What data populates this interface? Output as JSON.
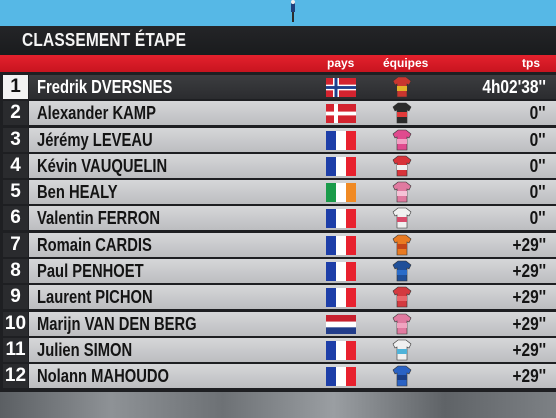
{
  "title": "CLASSEMENT ÉTAPE",
  "headers": {
    "pays": "pays",
    "equipes": "équipes",
    "tps": "tps"
  },
  "colors": {
    "accent_red": "#e4212d",
    "panel": "#1e1f22",
    "row": "#cfd0d2",
    "sky": "#56b8e6"
  },
  "rows": [
    {
      "rank": "1",
      "name": "Fredrik DVERSNES",
      "country": "norway",
      "time": "4h02'38''",
      "team_colors": [
        "#c9362f",
        "#e3b22a"
      ]
    },
    {
      "rank": "2",
      "name": "Alexander KAMP",
      "country": "denmark",
      "time": "0''",
      "team_colors": [
        "#2b2b2b",
        "#e23a3a"
      ]
    },
    {
      "rank": "3",
      "name": "Jérémy LEVEAU",
      "country": "france",
      "time": "0''",
      "team_colors": [
        "#e04a8e",
        "#f2a0c4"
      ]
    },
    {
      "rank": "4",
      "name": "Kévin VAUQUELIN",
      "country": "france",
      "time": "0''",
      "team_colors": [
        "#d8333a",
        "#f0f0f0"
      ]
    },
    {
      "rank": "5",
      "name": "Ben HEALY",
      "country": "ireland",
      "time": "0''",
      "team_colors": [
        "#e07aa0",
        "#f5c2d6"
      ]
    },
    {
      "rank": "6",
      "name": "Valentin FERRON",
      "country": "france",
      "time": "0''",
      "team_colors": [
        "#f0f0f0",
        "#d84a6a"
      ]
    },
    {
      "rank": "7",
      "name": "Romain CARDIS",
      "country": "france",
      "time": "+29''",
      "team_colors": [
        "#e97b22",
        "#c2451a"
      ]
    },
    {
      "rank": "8",
      "name": "Paul PENHOET",
      "country": "france",
      "time": "+29''",
      "team_colors": [
        "#1f4f99",
        "#2a6cc9"
      ]
    },
    {
      "rank": "9",
      "name": "Laurent PICHON",
      "country": "france",
      "time": "+29''",
      "team_colors": [
        "#d43a3f",
        "#e9676b"
      ]
    },
    {
      "rank": "10",
      "name": "Marijn VAN DEN BERG",
      "country": "netherlands",
      "time": "+29''",
      "team_colors": [
        "#e07aa0",
        "#f0a4c0"
      ]
    },
    {
      "rank": "11",
      "name": "Julien SIMON",
      "country": "france",
      "time": "+29''",
      "team_colors": [
        "#f0f0f0",
        "#4fb3d9"
      ]
    },
    {
      "rank": "12",
      "name": "Nolann MAHOUDO",
      "country": "france",
      "time": "+29''",
      "team_colors": [
        "#2a62c4",
        "#1b3f86"
      ]
    }
  ]
}
